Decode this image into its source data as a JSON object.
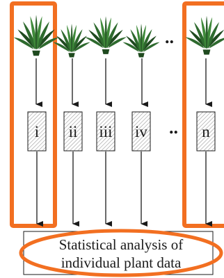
{
  "samples": [
    {
      "id": "i",
      "label": "i",
      "highlighted": true
    },
    {
      "id": "ii",
      "label": "ii",
      "highlighted": false
    },
    {
      "id": "iii",
      "label": "iii",
      "highlighted": false
    },
    {
      "id": "iv",
      "label": "iv",
      "highlighted": false
    },
    {
      "id": "n",
      "label": "n",
      "highlighted": true
    }
  ],
  "ellipsis_top": "..",
  "ellipsis_middle": "..",
  "analysis": {
    "line1": "Statistical analysis of",
    "line2": "individual plant data"
  },
  "colors": {
    "highlight": "#f26f21",
    "plant_dark": "#1f4a1f",
    "plant_light": "#3f8a3a",
    "ink": "#1a1a1a",
    "hatch": "#9a9a9a"
  },
  "icons": {
    "plant": "grass-plant-icon",
    "arrow": "down-arrow-icon"
  }
}
